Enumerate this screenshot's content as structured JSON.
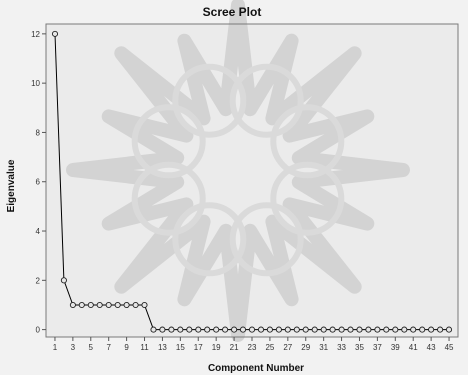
{
  "chart_data": {
    "type": "line",
    "title": "Scree Plot",
    "xlabel": "Component Number",
    "ylabel": "Eigenvalue",
    "x": [
      1,
      2,
      3,
      4,
      5,
      6,
      7,
      8,
      9,
      10,
      11,
      12,
      13,
      14,
      15,
      16,
      17,
      18,
      19,
      20,
      21,
      22,
      23,
      24,
      25,
      26,
      27,
      28,
      29,
      30,
      31,
      32,
      33,
      34,
      35,
      36,
      37,
      38,
      39,
      40,
      41,
      42,
      43,
      44,
      45
    ],
    "series": [
      {
        "values": [
          12,
          2,
          1,
          1,
          1,
          1,
          1,
          1,
          1,
          1,
          1,
          0,
          0,
          0,
          0,
          0,
          0,
          0,
          0,
          0,
          0,
          0,
          0,
          0,
          0,
          0,
          0,
          0,
          0,
          0,
          0,
          0,
          0,
          0,
          0,
          0,
          0,
          0,
          0,
          0,
          0,
          0,
          0,
          0,
          0
        ]
      }
    ],
    "xticks": [
      "1",
      "3",
      "5",
      "7",
      "9",
      "11",
      "13",
      "15",
      "17",
      "19",
      "21",
      "23",
      "25",
      "27",
      "29",
      "31",
      "33",
      "35",
      "37",
      "39",
      "41",
      "43",
      "45"
    ],
    "yticks": [
      "0",
      "2",
      "4",
      "6",
      "8",
      "10",
      "12"
    ],
    "xlim": [
      0,
      46
    ],
    "ylim": [
      -0.3,
      12.4
    ],
    "marker": "open-circle",
    "grid": false,
    "colors": {
      "line": "#000000",
      "background": "#ebebeb"
    }
  }
}
